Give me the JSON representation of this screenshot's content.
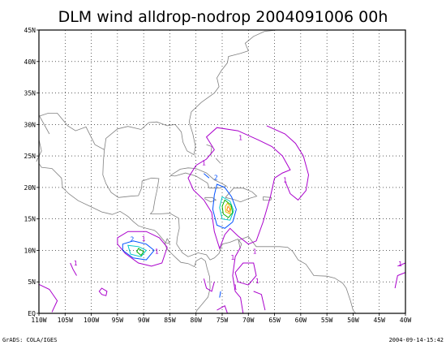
{
  "title": "DLM wind alldrop-nodrop 2004091006 00h",
  "footer": {
    "left": "GrADS: COLA/IGES",
    "right": "2004-09-14-15:42"
  },
  "map": {
    "lon_range": [
      -110,
      -40
    ],
    "lat_range": [
      0,
      45
    ],
    "x_ticks": [
      "110W",
      "105W",
      "100W",
      "95W",
      "90W",
      "85W",
      "80W",
      "75W",
      "70W",
      "65W",
      "60W",
      "55W",
      "50W",
      "45W",
      "40W"
    ],
    "y_ticks": [
      "EQ",
      "5N",
      "10N",
      "15N",
      "20N",
      "25N",
      "30N",
      "35N",
      "40N",
      "45N"
    ],
    "grid": "dotted",
    "colors": {
      "coast": "#808080",
      "contour_1": "#aa00cc",
      "contour_2": "#0050ff",
      "contour_3": "#00c8c8",
      "contour_4": "#00b000",
      "contour_5": "#e0c000",
      "contour_6": "#ff8000"
    },
    "contour_labels": [
      "1",
      "1",
      "1",
      "1",
      "1",
      "2",
      "2",
      "1",
      "1",
      "1",
      "1",
      "1",
      "1"
    ]
  }
}
